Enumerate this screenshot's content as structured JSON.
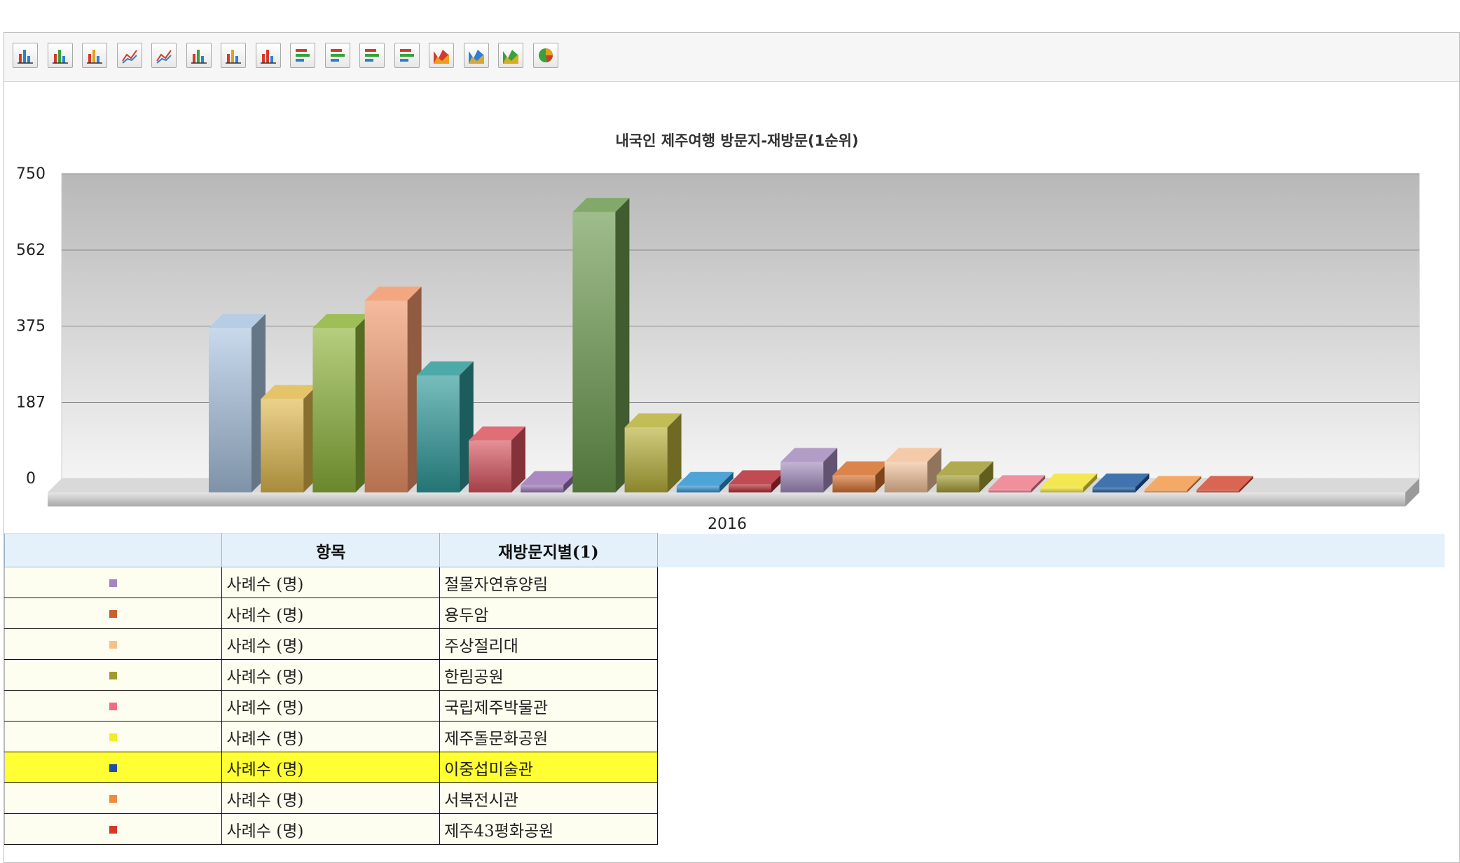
{
  "toolbar": {
    "buttons": [
      {
        "name": "bar-chart-icon"
      },
      {
        "name": "bar-chart-icon-2"
      },
      {
        "name": "bar-chart-icon-3"
      },
      {
        "name": "line-chart-icon"
      },
      {
        "name": "line-chart-icon-2"
      },
      {
        "name": "stacked-bar-icon"
      },
      {
        "name": "stacked-bar-icon-2"
      },
      {
        "name": "stacked-bar-icon-3"
      },
      {
        "name": "horizontal-bar-icon"
      },
      {
        "name": "horizontal-bar-icon-2"
      },
      {
        "name": "horizontal-bar-icon-3"
      },
      {
        "name": "horizontal-bar-icon-4"
      },
      {
        "name": "area-chart-icon"
      },
      {
        "name": "area-chart-icon-2"
      },
      {
        "name": "area-chart-icon-3"
      },
      {
        "name": "pie-chart-icon"
      }
    ]
  },
  "chart_data": {
    "type": "bar",
    "title": "내국인 제주여행 방문지-재방문(1순위)",
    "categories": [
      "2016"
    ],
    "ylim": [
      0,
      750
    ],
    "yticks": [
      "0",
      "187",
      "375",
      "562",
      "750"
    ],
    "grid": true,
    "series": [
      {
        "values": [
          405
        ],
        "color": "#a9c4e0"
      },
      {
        "values": [
          230
        ],
        "color": "#e0b94e"
      },
      {
        "values": [
          405
        ],
        "color": "#8db43a"
      },
      {
        "values": [
          472
        ],
        "color": "#f0976a"
      },
      {
        "values": [
          288
        ],
        "color": "#2f9a9a"
      },
      {
        "values": [
          128
        ],
        "color": "#d9545e"
      },
      {
        "values": [
          18
        ],
        "color": "#9b75b5"
      },
      {
        "values": [
          690
        ],
        "color": "#6c9a4e"
      },
      {
        "values": [
          160
        ],
        "color": "#b8b13a"
      },
      {
        "values": [
          16
        ],
        "color": "#2f93d0"
      },
      {
        "values": [
          20
        ],
        "color": "#b52b35"
      },
      {
        "values": [
          75
        ],
        "color": "#a48cbd"
      },
      {
        "values": [
          42
        ],
        "color": "#d5702e"
      },
      {
        "values": [
          75
        ],
        "color": "#f2c19a"
      },
      {
        "values": [
          42
        ],
        "color": "#a29c32"
      },
      {
        "values": [
          8
        ],
        "color": "#ef7b8c"
      },
      {
        "values": [
          12
        ],
        "color": "#f1e335"
      },
      {
        "values": [
          12
        ],
        "color": "#1f5aa0"
      },
      {
        "values": [
          6
        ],
        "color": "#f39a4c"
      },
      {
        "values": [
          6
        ],
        "color": "#d44a34"
      }
    ]
  },
  "table": {
    "headers": [
      "",
      "항목",
      "재방문지별(1)"
    ],
    "rows": [
      {
        "color": "#a486c0",
        "item": "사례수 (명)",
        "place": "절물자연휴양림"
      },
      {
        "color": "#c8612c",
        "item": "사례수 (명)",
        "place": "용두암"
      },
      {
        "color": "#f7c08a",
        "item": "사례수 (명)",
        "place": "주상절리대"
      },
      {
        "color": "#a09a30",
        "item": "사례수 (명)",
        "place": "한림공원"
      },
      {
        "color": "#ee6e82",
        "item": "사례수 (명)",
        "place": "국립제주박물관"
      },
      {
        "color": "#f4ec2a",
        "item": "사례수 (명)",
        "place": "제주돌문화공원"
      },
      {
        "color": "#1f4fa0",
        "item": "사례수 (명)",
        "place": "이중섭미술관"
      },
      {
        "color": "#f08a3c",
        "item": "사례수 (명)",
        "place": "서복전시관"
      },
      {
        "color": "#d43a26",
        "item": "사례수 (명)",
        "place": "제주43평화공원"
      }
    ],
    "selected_index": 6
  }
}
